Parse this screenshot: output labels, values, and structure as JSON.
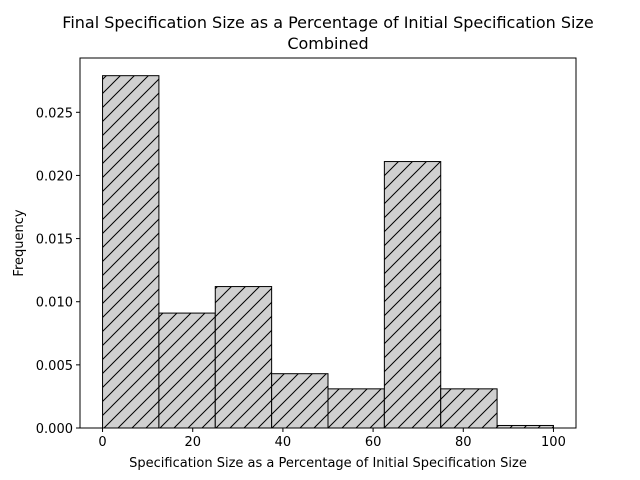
{
  "chart_data": {
    "type": "bar",
    "title_line1": "Final Specification Size as a Percentage of Initial Specification Size",
    "title_line2": "Combined",
    "xlabel": "Specification Size as a Percentage of Initial Specification Size",
    "ylabel": "Frequency",
    "xlim": [
      -5,
      105
    ],
    "ylim": [
      0,
      0.0293
    ],
    "x_ticks": [
      0,
      20,
      40,
      60,
      80,
      100
    ],
    "x_tick_labels": [
      "0",
      "20",
      "40",
      "60",
      "80",
      "100"
    ],
    "y_ticks": [
      0,
      0.005,
      0.01,
      0.015,
      0.02,
      0.025
    ],
    "y_tick_labels": [
      "0.000",
      "0.005",
      "0.010",
      "0.015",
      "0.020",
      "0.025"
    ],
    "bins": [
      {
        "x0": 0,
        "x1": 12.5,
        "value": 0.0279
      },
      {
        "x0": 12.5,
        "x1": 25,
        "value": 0.0091
      },
      {
        "x0": 25,
        "x1": 37.5,
        "value": 0.0112
      },
      {
        "x0": 37.5,
        "x1": 50,
        "value": 0.0043
      },
      {
        "x0": 50,
        "x1": 62.5,
        "value": 0.0031
      },
      {
        "x0": 62.5,
        "x1": 75,
        "value": 0.0211
      },
      {
        "x0": 75,
        "x1": 87.5,
        "value": 0.0031
      },
      {
        "x0": 87.5,
        "x1": 100,
        "value": 0.0002
      }
    ],
    "bar_fill": "#d0d0d0",
    "bar_edge": "#000000",
    "hatch": "/",
    "grid": false,
    "legend": "none"
  }
}
